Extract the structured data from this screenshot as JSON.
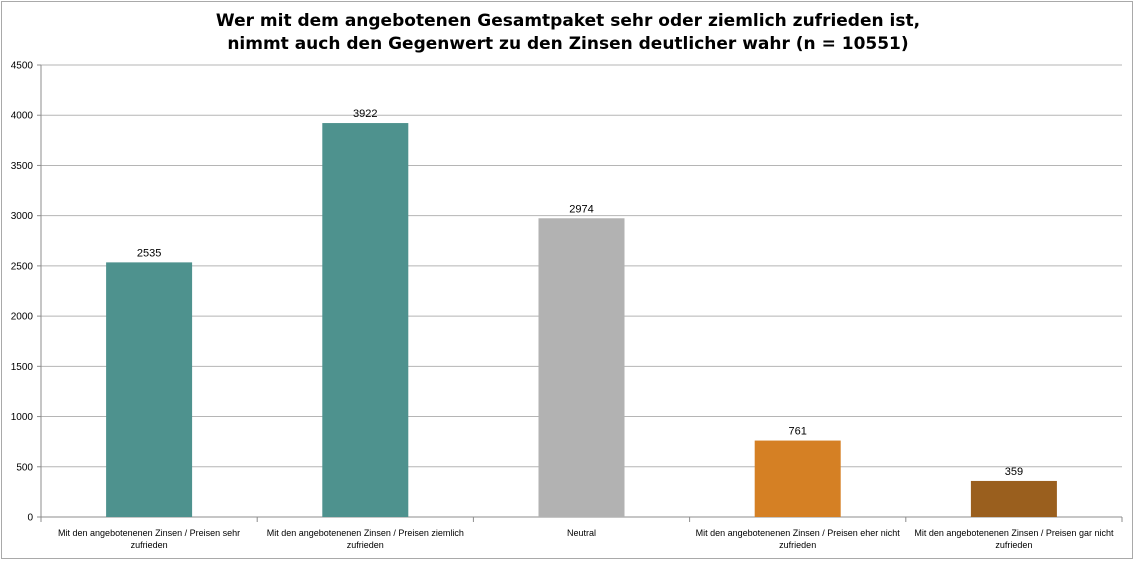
{
  "chart_data": {
    "type": "bar",
    "title_lines": [
      "Wer mit dem angebotenen Gesamtpaket sehr oder ziemlich zufrieden ist,",
      "nimmt auch den Gegenwert zu den Zinsen deutlicher wahr (n = 10551)"
    ],
    "categories": [
      [
        "Mit den angebotenenen Zinsen / Preisen sehr",
        "zufrieden"
      ],
      [
        "Mit den angebotenenen Zinsen / Preisen ziemlich",
        "zufrieden"
      ],
      [
        "Neutral"
      ],
      [
        "Mit den angebotenenen Zinsen / Preisen eher nicht",
        "zufrieden"
      ],
      [
        "Mit den angebotenenen Zinsen / Preisen gar nicht",
        "zufrieden"
      ]
    ],
    "values": [
      2535,
      3922,
      2974,
      761,
      359
    ],
    "bar_colors": [
      "#4e928e",
      "#4e928e",
      "#b2b2b2",
      "#d58024",
      "#9a5f1e"
    ],
    "yticks": [
      0,
      500,
      1000,
      1500,
      2000,
      2500,
      3000,
      3500,
      4000,
      4500
    ],
    "ylim": [
      0,
      4500
    ],
    "grid": true,
    "legend": "none"
  }
}
